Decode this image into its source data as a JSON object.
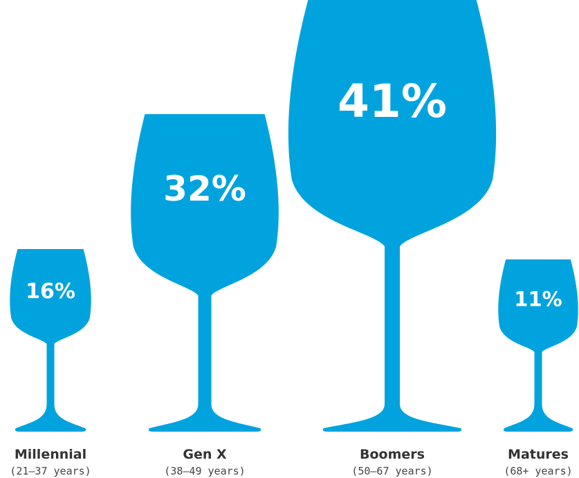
{
  "colors": {
    "glass": "#00a3de",
    "value_label": "#ffffff",
    "category_label": "#333333",
    "age_label": "#444444"
  },
  "chart_data": {
    "type": "bar",
    "categories": [
      "Millennial",
      "Gen X",
      "Boomers",
      "Matures"
    ],
    "subcategories": [
      "(21–37 years)",
      "(38–49 years)",
      "(50–67 years)",
      "(68+ years)"
    ],
    "values": [
      16,
      32,
      41,
      11
    ],
    "value_labels": [
      "16%",
      "32%",
      "41%",
      "11%"
    ],
    "unit": "%",
    "mark_shape": "wine-glass",
    "grid": false,
    "legend": "none"
  }
}
